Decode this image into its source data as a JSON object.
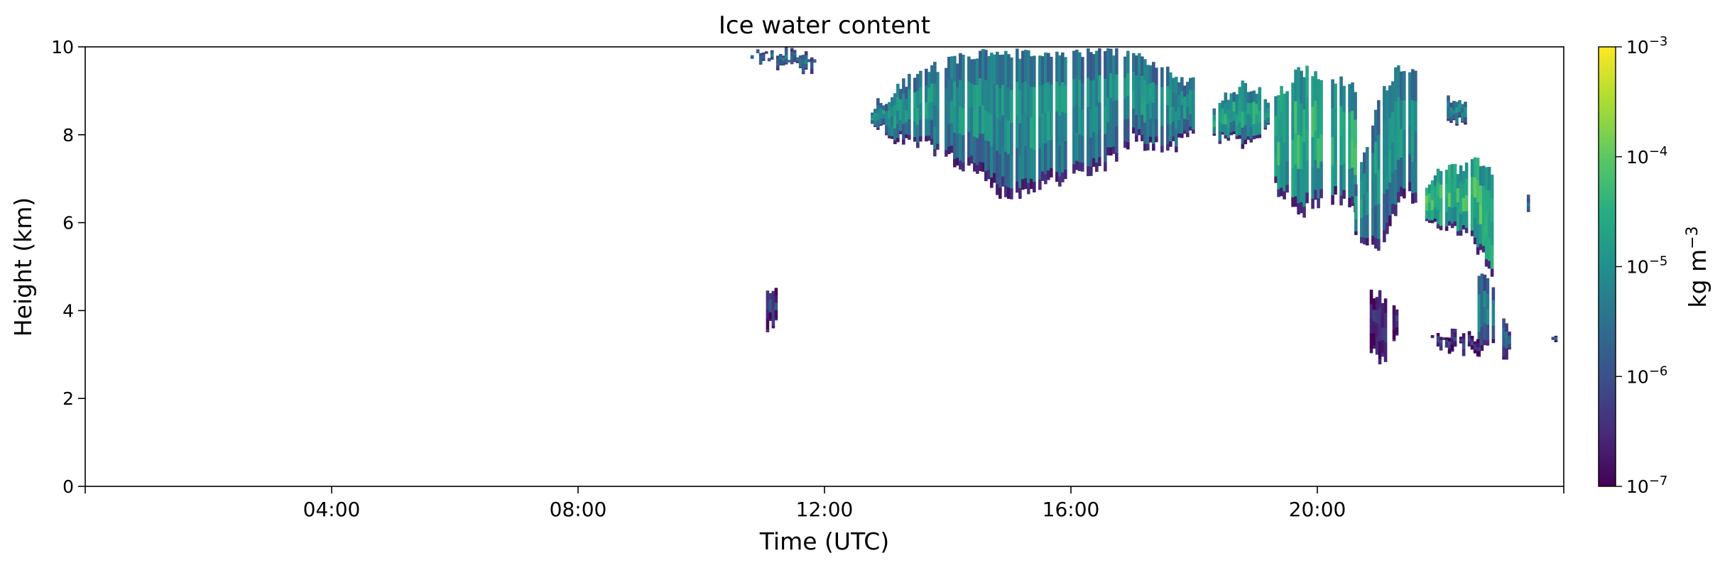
{
  "chart_data": {
    "type": "heatmap",
    "title": "Ice water content",
    "xlabel": "Time (UTC)",
    "ylabel": "Height (km)",
    "xlim": [
      0,
      24
    ],
    "ylim": [
      0,
      10
    ],
    "x_ticks": [
      {
        "value": 0,
        "label": ""
      },
      {
        "value": 4,
        "label": "04:00"
      },
      {
        "value": 8,
        "label": "08:00"
      },
      {
        "value": 12,
        "label": "12:00"
      },
      {
        "value": 16,
        "label": "16:00"
      },
      {
        "value": 20,
        "label": "20:00"
      },
      {
        "value": 24,
        "label": ""
      }
    ],
    "y_ticks": [
      0,
      2,
      4,
      6,
      8,
      10
    ],
    "grid": false,
    "colormap": "viridis",
    "colormap_stops": [
      "#440154",
      "#472c7a",
      "#3b518b",
      "#2c718e",
      "#21908d",
      "#27ad81",
      "#5cc863",
      "#aadc32",
      "#fde725"
    ],
    "colorbar": {
      "label_main": "kg m",
      "label_exp": "−3",
      "scale": "log",
      "range": [
        1e-07,
        0.001
      ],
      "ticks": [
        {
          "value": 1e-07,
          "base": "10",
          "exp": "−7"
        },
        {
          "value": 1e-06,
          "base": "10",
          "exp": "−6"
        },
        {
          "value": 1e-05,
          "base": "10",
          "exp": "−5"
        },
        {
          "value": 0.0001,
          "base": "10",
          "exp": "−4"
        },
        {
          "value": 0.001,
          "base": "10",
          "exp": "−3"
        }
      ]
    },
    "regions": [
      {
        "name": "upper-cloud-early",
        "x_start": 10.8,
        "x_end": 11.9,
        "profile": [
          [
            10.8,
            9.8,
            10.0
          ],
          [
            11.2,
            9.6,
            10.0
          ],
          [
            11.6,
            9.5,
            10.0
          ],
          [
            11.9,
            9.6,
            9.9
          ]
        ],
        "log_value": -5.8
      },
      {
        "name": "main-cirrus",
        "x_start": 12.75,
        "x_end": 18.0,
        "profile": [
          [
            12.75,
            8.3,
            8.8
          ],
          [
            13.0,
            8.0,
            9.0
          ],
          [
            13.5,
            7.8,
            9.6
          ],
          [
            14.0,
            7.5,
            9.8
          ],
          [
            14.5,
            7.1,
            10.0
          ],
          [
            15.0,
            6.5,
            10.0
          ],
          [
            15.5,
            6.9,
            10.0
          ],
          [
            16.0,
            7.0,
            10.0
          ],
          [
            16.5,
            7.3,
            10.0
          ],
          [
            17.0,
            7.9,
            10.0
          ],
          [
            17.5,
            7.6,
            9.6
          ],
          [
            18.0,
            8.0,
            9.3
          ]
        ],
        "log_value": -5.3
      },
      {
        "name": "cirrus-1830",
        "x_start": 18.3,
        "x_end": 19.2,
        "profile": [
          [
            18.3,
            8.0,
            8.8
          ],
          [
            18.8,
            7.8,
            9.3
          ],
          [
            19.2,
            8.2,
            9.0
          ]
        ],
        "log_value": -5.0
      },
      {
        "name": "cirrus-1930",
        "x_start": 19.3,
        "x_end": 20.6,
        "profile": [
          [
            19.3,
            6.8,
            9.0
          ],
          [
            19.7,
            6.2,
            9.6
          ],
          [
            20.1,
            6.6,
            9.5
          ],
          [
            20.6,
            6.3,
            9.2
          ]
        ],
        "log_value": -4.8
      },
      {
        "name": "cirrus-2100",
        "x_start": 20.6,
        "x_end": 21.6,
        "profile": [
          [
            20.6,
            5.6,
            7.0
          ],
          [
            21.0,
            5.5,
            9.0
          ],
          [
            21.3,
            6.5,
            9.7
          ],
          [
            21.6,
            6.6,
            9.6
          ]
        ],
        "log_value": -5.3
      },
      {
        "name": "cirrus-2200",
        "x_start": 21.75,
        "x_end": 22.85,
        "profile": [
          [
            21.75,
            6.0,
            6.9
          ],
          [
            22.0,
            5.9,
            7.4
          ],
          [
            22.4,
            5.7,
            7.4
          ],
          [
            22.7,
            5.2,
            7.6
          ],
          [
            22.85,
            4.5,
            7.3
          ]
        ],
        "log_value": -4.6
      },
      {
        "name": "fall-streak-2245",
        "x_start": 22.6,
        "x_end": 22.85,
        "profile": [
          [
            22.6,
            3.1,
            5.0
          ],
          [
            22.85,
            3.1,
            4.6
          ]
        ],
        "log_value": -5.6
      },
      {
        "name": "low-cloud-2200",
        "x_start": 21.75,
        "x_end": 22.6,
        "profile": [
          [
            21.75,
            3.3,
            3.6
          ],
          [
            22.2,
            3.1,
            3.6
          ],
          [
            22.6,
            3.1,
            3.5
          ]
        ],
        "log_value": -6.6
      },
      {
        "name": "low-cloud-2030",
        "x_start": 20.85,
        "x_end": 21.3,
        "profile": [
          [
            20.85,
            3.0,
            4.6
          ],
          [
            21.1,
            2.9,
            4.4
          ],
          [
            21.3,
            3.4,
            4.2
          ]
        ],
        "log_value": -6.7
      },
      {
        "name": "low-cloud-1100",
        "x_start": 11.05,
        "x_end": 11.22,
        "profile": [
          [
            11.05,
            3.6,
            4.6
          ],
          [
            11.22,
            3.7,
            4.8
          ]
        ],
        "log_value": -6.5
      },
      {
        "name": "patch-2200-upper",
        "x_start": 22.1,
        "x_end": 22.4,
        "profile": [
          [
            22.1,
            8.3,
            8.9
          ],
          [
            22.4,
            8.4,
            8.8
          ]
        ],
        "log_value": -5.5
      },
      {
        "name": "patch-2345",
        "x_start": 23.4,
        "x_end": 23.5,
        "profile": [
          [
            23.4,
            6.3,
            6.8
          ],
          [
            23.5,
            6.3,
            6.7
          ]
        ],
        "log_value": -6.0
      },
      {
        "name": "patch-2315",
        "x_start": 23.0,
        "x_end": 23.1,
        "profile": [
          [
            23.0,
            3.0,
            3.9
          ],
          [
            23.1,
            3.0,
            3.8
          ]
        ],
        "log_value": -6.0
      },
      {
        "name": "patch-2355",
        "x_start": 23.8,
        "x_end": 23.88,
        "profile": [
          [
            23.8,
            3.2,
            3.6
          ],
          [
            23.88,
            3.2,
            3.6
          ]
        ],
        "log_value": -6.2
      }
    ]
  }
}
